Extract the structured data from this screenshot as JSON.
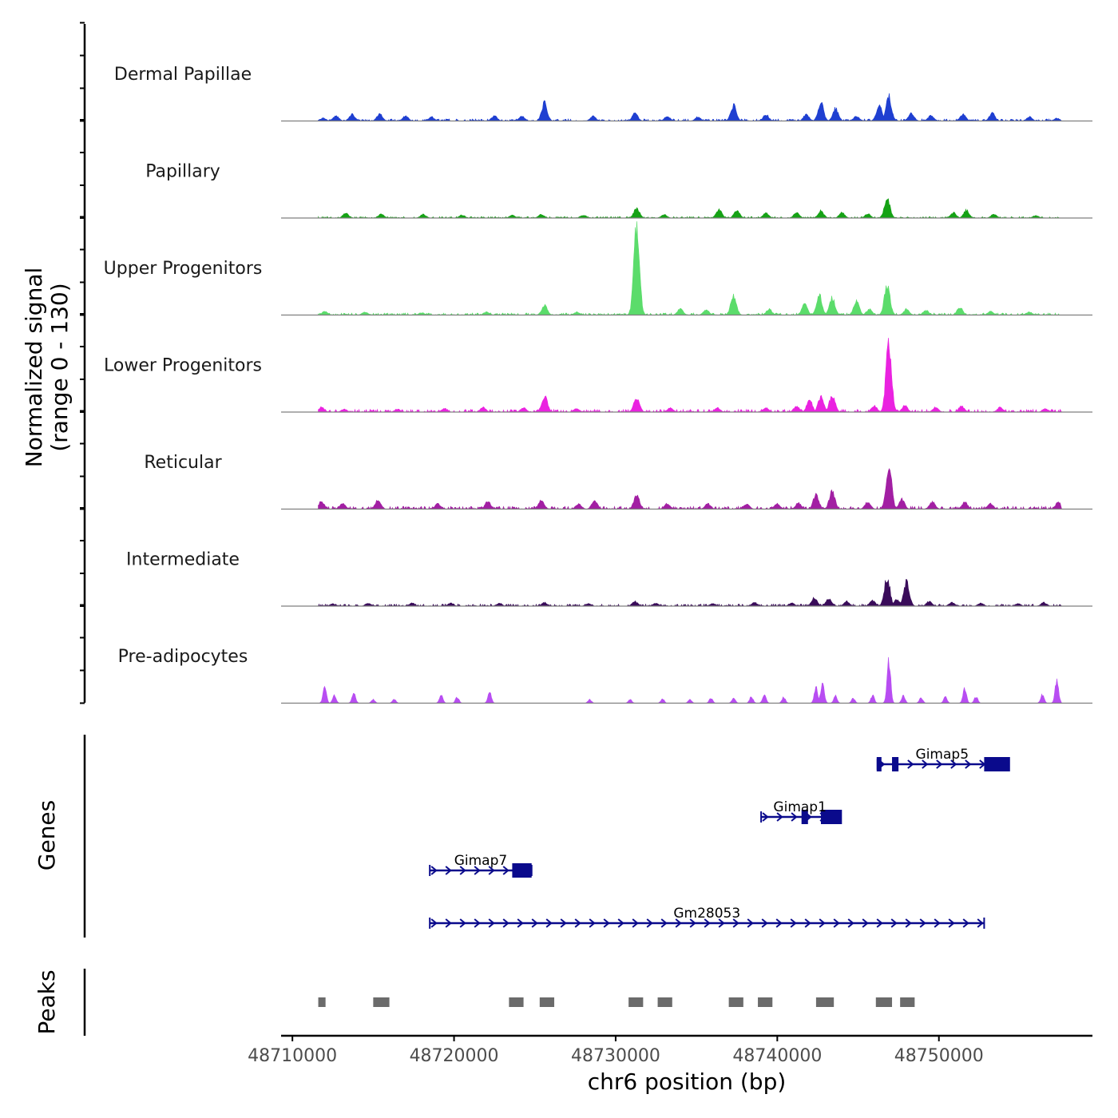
{
  "chart_data": {
    "type": "area",
    "title": "",
    "chromosome": "chr6",
    "xlabel": "chr6 position (bp)",
    "ylabel_line1": "Normalized signal",
    "ylabel_line2": "(range 0 - 130)",
    "xlim": [
      48709300,
      48759500
    ],
    "ylim": [
      0,
      130
    ],
    "x_ticks": [
      48710000,
      48720000,
      48730000,
      48740000,
      48750000
    ],
    "x_tick_labels": [
      "48710000",
      "48720000",
      "48730000",
      "48740000",
      "48750000"
    ],
    "signal_range": [
      48711600,
      48757600
    ],
    "tracks": [
      {
        "name": "Dermal Papillae",
        "color": "#1f3fd1",
        "base": 3,
        "peaks": [
          [
            48711900,
            5
          ],
          [
            48712700,
            9
          ],
          [
            48713700,
            11
          ],
          [
            48715400,
            12
          ],
          [
            48717000,
            9
          ],
          [
            48718600,
            7
          ],
          [
            48722500,
            9
          ],
          [
            48724200,
            8
          ],
          [
            48725600,
            30
          ],
          [
            48728600,
            8
          ],
          [
            48731200,
            13
          ],
          [
            48733200,
            8
          ],
          [
            48735100,
            7
          ],
          [
            48737300,
            26
          ],
          [
            48739300,
            11
          ],
          [
            48741800,
            11
          ],
          [
            48742700,
            30
          ],
          [
            48743600,
            21
          ],
          [
            48744900,
            8
          ],
          [
            48746300,
            26
          ],
          [
            48746900,
            41
          ],
          [
            48748300,
            13
          ],
          [
            48749500,
            9
          ],
          [
            48751500,
            11
          ],
          [
            48753300,
            13
          ],
          [
            48755600,
            7
          ],
          [
            48757300,
            5
          ]
        ]
      },
      {
        "name": "Papillary",
        "color": "#15a215",
        "base": 2,
        "peaks": [
          [
            48713300,
            8
          ],
          [
            48715500,
            7
          ],
          [
            48718100,
            6
          ],
          [
            48720500,
            5
          ],
          [
            48723600,
            5
          ],
          [
            48725400,
            6
          ],
          [
            48728000,
            5
          ],
          [
            48731300,
            17
          ],
          [
            48733000,
            6
          ],
          [
            48736400,
            15
          ],
          [
            48737500,
            13
          ],
          [
            48739300,
            8
          ],
          [
            48741200,
            9
          ],
          [
            48742700,
            12
          ],
          [
            48744000,
            9
          ],
          [
            48745600,
            7
          ],
          [
            48746800,
            33
          ],
          [
            48750900,
            9
          ],
          [
            48751700,
            13
          ],
          [
            48753400,
            6
          ],
          [
            48756000,
            4
          ]
        ]
      },
      {
        "name": "Upper Progenitors",
        "color": "#5bdc6b",
        "base": 3,
        "peaks": [
          [
            48712000,
            6
          ],
          [
            48714500,
            5
          ],
          [
            48718000,
            4
          ],
          [
            48722000,
            5
          ],
          [
            48725600,
            17
          ],
          [
            48727600,
            5
          ],
          [
            48731300,
            146
          ],
          [
            48734000,
            10
          ],
          [
            48735600,
            9
          ],
          [
            48737300,
            33
          ],
          [
            48739500,
            10
          ],
          [
            48741700,
            18
          ],
          [
            48742600,
            33
          ],
          [
            48743400,
            29
          ],
          [
            48744900,
            24
          ],
          [
            48745700,
            10
          ],
          [
            48746800,
            50
          ],
          [
            48748000,
            10
          ],
          [
            48749200,
            8
          ],
          [
            48751300,
            13
          ],
          [
            48753200,
            6
          ],
          [
            48755600,
            5
          ]
        ]
      },
      {
        "name": "Lower Progenitors",
        "color": "#ea22e0",
        "base": 4,
        "peaks": [
          [
            48711800,
            8
          ],
          [
            48713200,
            5
          ],
          [
            48716500,
            5
          ],
          [
            48719400,
            6
          ],
          [
            48721800,
            8
          ],
          [
            48724300,
            7
          ],
          [
            48725600,
            27
          ],
          [
            48727600,
            6
          ],
          [
            48731300,
            25
          ],
          [
            48733400,
            7
          ],
          [
            48736300,
            7
          ],
          [
            48739300,
            7
          ],
          [
            48741200,
            10
          ],
          [
            48742000,
            20
          ],
          [
            48742700,
            25
          ],
          [
            48743400,
            29
          ],
          [
            48746000,
            11
          ],
          [
            48746900,
            115
          ],
          [
            48747900,
            11
          ],
          [
            48749800,
            8
          ],
          [
            48751400,
            10
          ],
          [
            48753800,
            8
          ],
          [
            48756600,
            6
          ]
        ]
      },
      {
        "name": "Reticular",
        "color": "#a21fa3",
        "base": 4,
        "peaks": [
          [
            48711800,
            13
          ],
          [
            48713100,
            10
          ],
          [
            48715300,
            16
          ],
          [
            48719000,
            9
          ],
          [
            48722100,
            13
          ],
          [
            48725400,
            14
          ],
          [
            48727700,
            9
          ],
          [
            48728700,
            14
          ],
          [
            48731300,
            24
          ],
          [
            48733200,
            9
          ],
          [
            48735700,
            9
          ],
          [
            48738100,
            9
          ],
          [
            48740000,
            9
          ],
          [
            48741300,
            10
          ],
          [
            48742400,
            24
          ],
          [
            48743400,
            30
          ],
          [
            48745600,
            12
          ],
          [
            48746900,
            75
          ],
          [
            48747700,
            17
          ],
          [
            48749600,
            12
          ],
          [
            48751600,
            12
          ],
          [
            48753200,
            9
          ],
          [
            48757400,
            12
          ]
        ]
      },
      {
        "name": "Intermediate",
        "color": "#3a0c5a",
        "base": 3,
        "peaks": [
          [
            48712500,
            4
          ],
          [
            48714700,
            5
          ],
          [
            48717400,
            5
          ],
          [
            48719800,
            5
          ],
          [
            48722800,
            5
          ],
          [
            48725600,
            6
          ],
          [
            48728300,
            4
          ],
          [
            48731200,
            8
          ],
          [
            48732500,
            5
          ],
          [
            48736000,
            4
          ],
          [
            48738600,
            6
          ],
          [
            48740900,
            5
          ],
          [
            48742300,
            14
          ],
          [
            48743200,
            13
          ],
          [
            48744300,
            8
          ],
          [
            48745900,
            9
          ],
          [
            48746800,
            48
          ],
          [
            48747400,
            11
          ],
          [
            48748000,
            40
          ],
          [
            48749400,
            8
          ],
          [
            48750800,
            6
          ],
          [
            48752600,
            5
          ],
          [
            48754900,
            4
          ],
          [
            48756500,
            6
          ]
        ]
      },
      {
        "name": "Pre-adipocytes",
        "color": "#b84df2",
        "base": 0,
        "sparse": true,
        "peaks": [
          [
            48712000,
            25
          ],
          [
            48712600,
            14
          ],
          [
            48713800,
            18
          ],
          [
            48715000,
            6
          ],
          [
            48716300,
            7
          ],
          [
            48719200,
            14
          ],
          [
            48720200,
            10
          ],
          [
            48722200,
            18
          ],
          [
            48728400,
            6
          ],
          [
            48730900,
            6
          ],
          [
            48732900,
            7
          ],
          [
            48734600,
            6
          ],
          [
            48735900,
            8
          ],
          [
            48737300,
            8
          ],
          [
            48738400,
            11
          ],
          [
            48739200,
            15
          ],
          [
            48740400,
            10
          ],
          [
            48742400,
            26
          ],
          [
            48742800,
            36
          ],
          [
            48743600,
            12
          ],
          [
            48744700,
            8
          ],
          [
            48745900,
            13
          ],
          [
            48746900,
            75
          ],
          [
            48747800,
            12
          ],
          [
            48748900,
            9
          ],
          [
            48750400,
            11
          ],
          [
            48751600,
            24
          ],
          [
            48752300,
            11
          ],
          [
            48756400,
            14
          ],
          [
            48757300,
            37
          ]
        ]
      }
    ],
    "genes_track_label": "Genes",
    "genes": [
      {
        "name": "Gimap5",
        "row": 0,
        "start": 48746200,
        "end": 48754200,
        "strand": "+",
        "exons": [
          [
            48746150,
            48746400
          ],
          [
            48747100,
            48747500
          ],
          [
            48752800,
            48754400
          ]
        ]
      },
      {
        "name": "Gimap1",
        "row": 1,
        "start": 48739000,
        "end": 48743800,
        "strand": "+",
        "exons": [
          [
            48741500,
            48741900
          ],
          [
            48742700,
            48744000
          ]
        ]
      },
      {
        "name": "Gimap7",
        "row": 2,
        "start": 48718500,
        "end": 48724800,
        "strand": "+",
        "exons": [
          [
            48723600,
            48724800
          ]
        ]
      },
      {
        "name": "Gm28053",
        "row": 3,
        "start": 48718500,
        "end": 48752800,
        "strand": "+",
        "exons": []
      }
    ],
    "peaks_track_label": "Peaks",
    "peak_regions": [
      [
        48711600,
        48712050
      ],
      [
        48715000,
        48716000
      ],
      [
        48723400,
        48724300
      ],
      [
        48725300,
        48726200
      ],
      [
        48730800,
        48731700
      ],
      [
        48732600,
        48733500
      ],
      [
        48737000,
        48737900
      ],
      [
        48738800,
        48739700
      ],
      [
        48742400,
        48743500
      ],
      [
        48746100,
        48747100
      ],
      [
        48747600,
        48748500
      ]
    ],
    "colors": {
      "gene": "#0a0a8c",
      "peak": "#6b6b6b",
      "baseline": "#7f7f7f",
      "axis": "#000000"
    }
  }
}
